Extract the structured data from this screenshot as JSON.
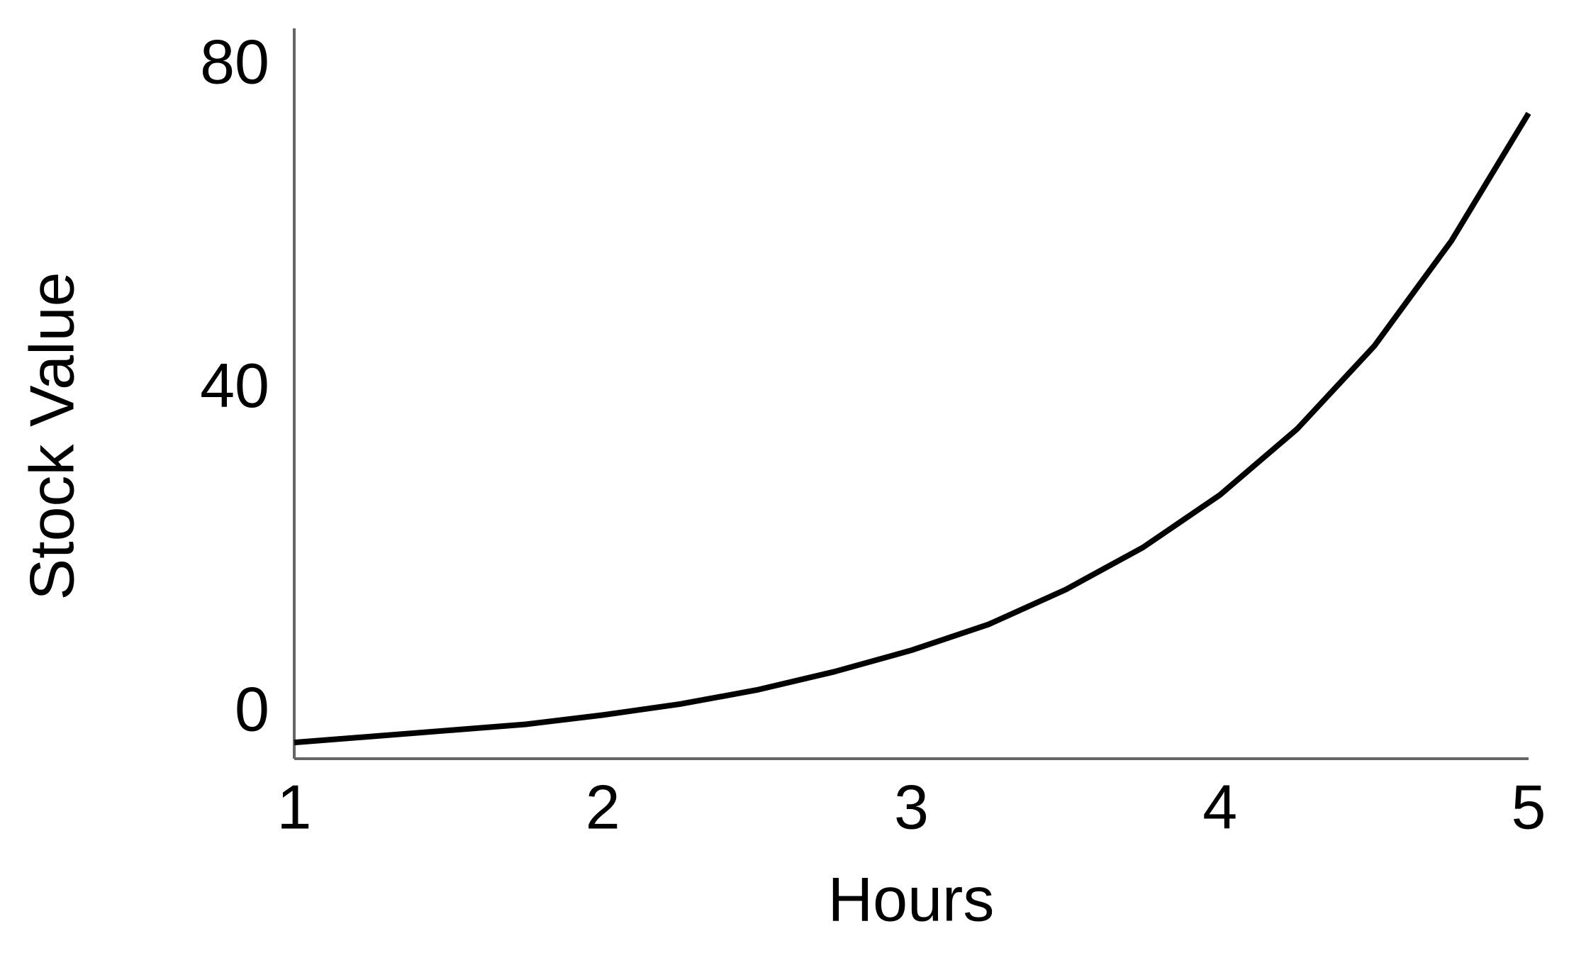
{
  "chart_data": {
    "type": "line",
    "x_label": "Hours",
    "y_label": "Stock Value",
    "x": [
      1,
      1.25,
      1.5,
      1.75,
      2,
      2.25,
      2.5,
      2.75,
      3,
      3.25,
      3.5,
      3.75,
      4,
      4.25,
      4.5,
      4.75,
      5
    ],
    "series": [
      {
        "color": "#000000",
        "values": [
          -3.5,
          -2.75,
          -2,
          -1.25,
          -0.1,
          1.25,
          3,
          5.25,
          7.9,
          11.1,
          15.4,
          20.6,
          27.1,
          35.25,
          45.5,
          58.5,
          74.25
        ]
      }
    ],
    "xlim": [
      1,
      5
    ],
    "xticks": [
      1,
      2,
      3,
      4,
      5
    ],
    "ylim": [
      -5.5,
      84.75
    ],
    "yticks": [
      0,
      40,
      80
    ]
  }
}
